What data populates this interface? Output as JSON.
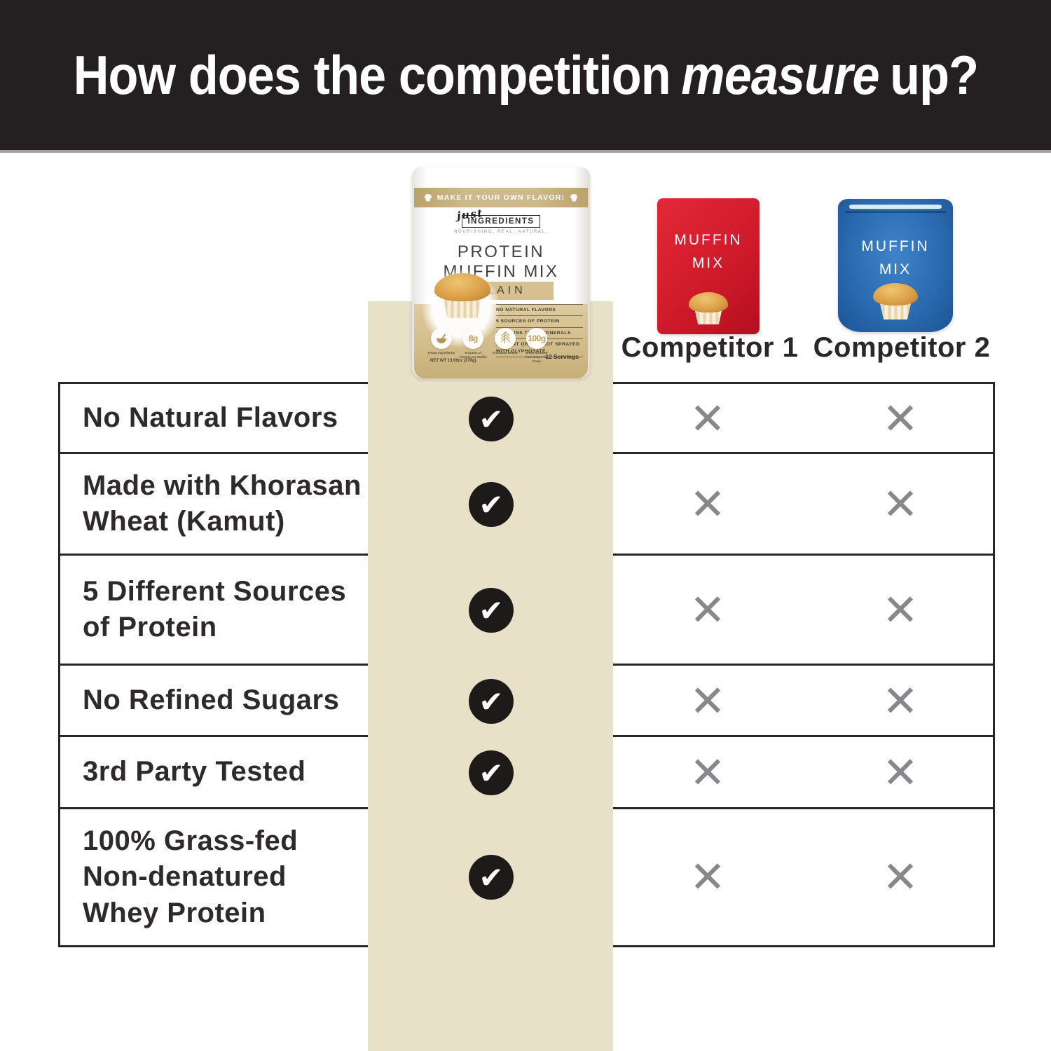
{
  "header": {
    "title_prefix": "How does the competition",
    "title_emphasis": "measure",
    "title_suffix": "up?"
  },
  "hero": {
    "main_product": {
      "banner": "MAKE IT YOUR OWN FLAVOR!",
      "brand_script": "just",
      "brand_name": "INGREDIENTS",
      "brand_tagline": "NOURISHING. REAL. NATURAL.",
      "title_line1": "PROTEIN",
      "title_line2": "MUFFIN MIX",
      "flavor": "PLAIN",
      "bullets": [
        "NO NATURAL FLAVORS",
        "5 SOURCES OF PROTEIN",
        "CONTAINS TRACE MINERALS",
        "ANCIENT GRAINS NOT SPRAYED WITH GLYPHOSATE"
      ],
      "badges": [
        {
          "icon": "bowl-icon",
          "value": "",
          "label": "8 Raw Ingredients"
        },
        {
          "icon": "",
          "value": "8g",
          "label": "8 Grams of Protein per Muffin"
        },
        {
          "icon": "wheat-icon",
          "value": "",
          "label": "Khorasan Wheat"
        },
        {
          "icon": "",
          "value": "100g",
          "label": "Whey Sourced from Grass-fed Cows"
        }
      ],
      "net_weight": "NET WT 13.06oz (370g)",
      "servings": "12 Servings"
    },
    "competitors": [
      {
        "name": "Competitor 1",
        "package_line1": "MUFFIN",
        "package_line2": "MIX"
      },
      {
        "name": "Competitor 2",
        "package_line1": "MUFFIN",
        "package_line2": "MIX"
      }
    ]
  },
  "table": {
    "rows": [
      {
        "label": "No Natural Flavors",
        "marks": [
          "check",
          "x",
          "x"
        ]
      },
      {
        "label": "Made with Khorasan\nWheat (Kamut)",
        "marks": [
          "check",
          "x",
          "x"
        ]
      },
      {
        "label": "5 Different Sources\nof Protein",
        "marks": [
          "check",
          "x",
          "x"
        ]
      },
      {
        "label": "No Refined Sugars",
        "marks": [
          "check",
          "x",
          "x"
        ]
      },
      {
        "label": "3rd Party Tested",
        "marks": [
          "check",
          "x",
          "x"
        ]
      },
      {
        "label": "100% Grass-fed\nNon-denatured\nWhey Protein",
        "marks": [
          "check",
          "x",
          "x"
        ]
      }
    ]
  },
  "icons": {
    "check": "✔",
    "x": "✕"
  },
  "colors": {
    "header_bg": "#241f21",
    "beige_column": "#e9e0c8",
    "package_tan_band": "#c9b281",
    "competitor1_red": "#d21c2c",
    "competitor2_blue": "#2d6fb5",
    "check_circle": "#1d1a19",
    "x_mark_gray": "#87888b",
    "table_border": "#292526"
  }
}
